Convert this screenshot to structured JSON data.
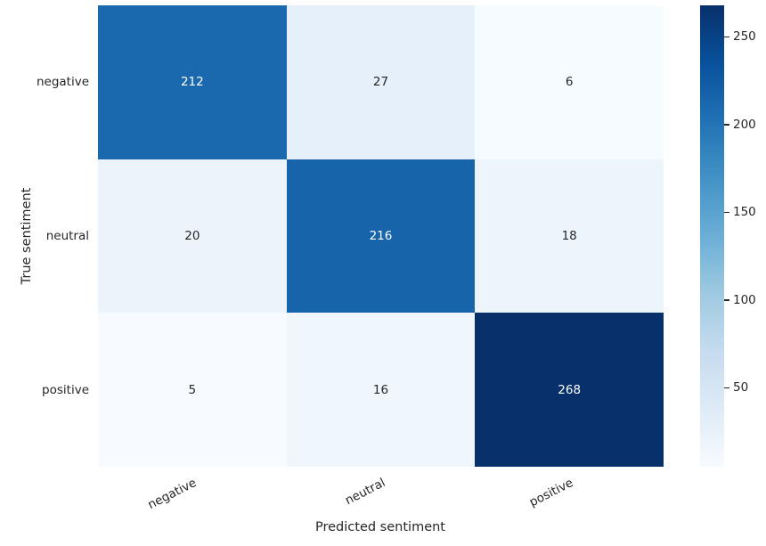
{
  "chart_data": {
    "type": "heatmap",
    "title": "",
    "xlabel": "Predicted sentiment",
    "ylabel": "True sentiment",
    "x_categories": [
      "negative",
      "neutral",
      "positive"
    ],
    "y_categories": [
      "negative",
      "neutral",
      "positive"
    ],
    "matrix": [
      [
        212,
        27,
        6
      ],
      [
        20,
        216,
        18
      ],
      [
        5,
        16,
        268
      ]
    ],
    "vmin": 5,
    "vmax": 268,
    "colormap_name": "Blues",
    "colormap_stops": [
      "#f7fbff",
      "#deebf7",
      "#c6dbef",
      "#9ecae1",
      "#6baed6",
      "#4292c6",
      "#2171b5",
      "#08519c",
      "#08306b"
    ],
    "annotation_color_on_dark": "#ffffff",
    "annotation_color_on_light": "#262626",
    "tick_label_color": "#262626",
    "colorbar": {
      "ticks": [
        50,
        100,
        150,
        200,
        250
      ],
      "orientation": "vertical",
      "position": "right"
    },
    "grid": false,
    "legend": false
  }
}
